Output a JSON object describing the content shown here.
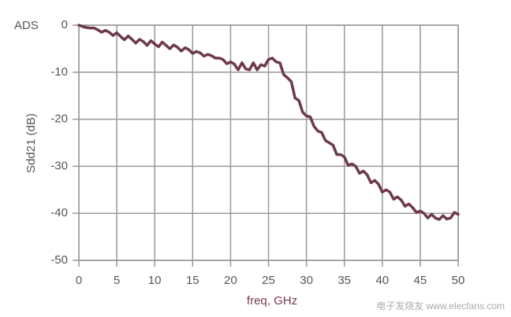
{
  "chart_data": {
    "type": "line",
    "corner_label": "ADS",
    "x_label": "freq, GHz",
    "y_label": "Sdd21 (dB)",
    "watermark": "电子发烧友 www.elecfans.com",
    "x": [
      0,
      0.5,
      1,
      1.5,
      2,
      2.5,
      3,
      3.5,
      4,
      4.5,
      5,
      5.5,
      6,
      6.5,
      7,
      7.5,
      8,
      8.5,
      9,
      9.5,
      10,
      10.5,
      11,
      11.5,
      12,
      12.5,
      13,
      13.5,
      14,
      14.5,
      15,
      15.5,
      16,
      16.5,
      17,
      17.5,
      18,
      18.5,
      19,
      19.5,
      20,
      20.5,
      21,
      21.5,
      22,
      22.5,
      23,
      23.5,
      24,
      24.5,
      25,
      25.5,
      26,
      26.5,
      27,
      27.5,
      28,
      28.5,
      29,
      29.5,
      30,
      30.5,
      31,
      31.5,
      32,
      32.5,
      33,
      33.5,
      34,
      34.5,
      35,
      35.5,
      36,
      36.5,
      37,
      37.5,
      38,
      38.5,
      39,
      39.5,
      40,
      40.5,
      41,
      41.5,
      42,
      42.5,
      43,
      43.5,
      44,
      44.5,
      45,
      45.5,
      46,
      46.5,
      47,
      47.5,
      48,
      48.5,
      49,
      49.5,
      50
    ],
    "series": [
      {
        "color": "#6e3a48",
        "values": [
          0,
          -0.3,
          -0.5,
          -0.6,
          -0.6,
          -1.0,
          -1.5,
          -1.1,
          -1.5,
          -2.2,
          -1.6,
          -2.4,
          -3.1,
          -2.3,
          -3.0,
          -3.8,
          -3.0,
          -3.5,
          -4.3,
          -3.3,
          -4.0,
          -4.6,
          -3.6,
          -4.3,
          -5.0,
          -4.2,
          -4.7,
          -5.5,
          -4.8,
          -5.2,
          -6.0,
          -5.6,
          -5.9,
          -6.6,
          -6.2,
          -6.5,
          -7.0,
          -7.0,
          -7.3,
          -8.2,
          -7.8,
          -8.3,
          -9.5,
          -8.0,
          -9.3,
          -9.5,
          -8.0,
          -9.5,
          -8.4,
          -8.7,
          -7.3,
          -7.0,
          -7.8,
          -8.0,
          -10.5,
          -11.2,
          -12.0,
          -15.5,
          -16.0,
          -18.5,
          -19.3,
          -19.5,
          -21.5,
          -22.5,
          -22.8,
          -24.5,
          -25.0,
          -25.5,
          -27.5,
          -27.5,
          -28.0,
          -29.8,
          -29.5,
          -30.0,
          -31.5,
          -31.0,
          -31.8,
          -33.5,
          -33.0,
          -33.8,
          -35.5,
          -35.0,
          -35.5,
          -37.0,
          -36.5,
          -37.2,
          -38.5,
          -38.0,
          -38.8,
          -39.8,
          -39.5,
          -40.0,
          -41.0,
          -40.2,
          -41.0,
          -41.3,
          -40.5,
          -41.2,
          -41.0,
          -39.8,
          -40.2
        ]
      }
    ],
    "xlim": [
      0,
      50
    ],
    "xticks": [
      0,
      5,
      10,
      15,
      20,
      25,
      30,
      35,
      40,
      45,
      50
    ],
    "ylim": [
      -50,
      0
    ],
    "yticks": [
      0,
      -10,
      -20,
      -30,
      -40,
      -50
    ],
    "grid": true
  }
}
